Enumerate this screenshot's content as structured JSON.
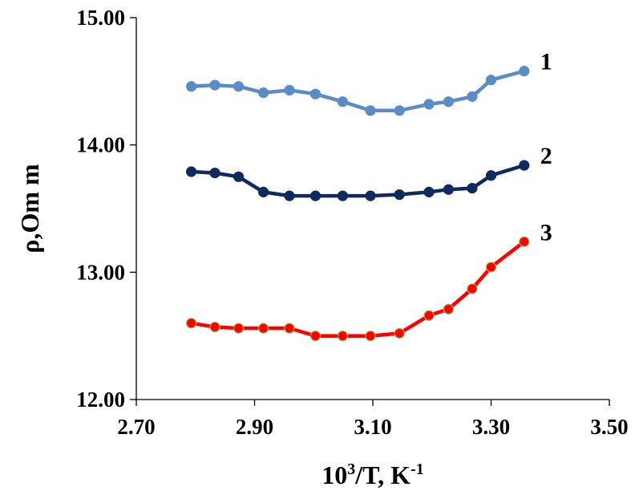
{
  "chart_data": {
    "type": "line",
    "xlabel": "10",
    "xlabel_sup1": "3",
    "xlabel_mid": "/T, K",
    "xlabel_sup2": "-1",
    "ylabel": "ρ,Om m",
    "xlim": [
      2.7,
      3.5
    ],
    "ylim": [
      12.0,
      15.0
    ],
    "xticks": [
      "2.70",
      "2.90",
      "3.10",
      "3.30",
      "3.50"
    ],
    "yticks": [
      "12.00",
      "13.00",
      "14.00",
      "15.00"
    ],
    "grid": false,
    "legend": "none",
    "series": [
      {
        "name": "1",
        "color": "#5b8cc8",
        "marker_fill": "#5b8cc8",
        "marker_edge": "#5b8cc8",
        "x": [
          2.793,
          2.833,
          2.873,
          2.915,
          2.959,
          3.003,
          3.049,
          3.096,
          3.145,
          3.195,
          3.228,
          3.268,
          3.3,
          3.356
        ],
        "y": [
          14.46,
          14.47,
          14.46,
          14.41,
          14.43,
          14.4,
          14.34,
          14.27,
          14.27,
          14.32,
          14.34,
          14.38,
          14.51,
          14.58
        ]
      },
      {
        "name": "2",
        "color": "#0e2a5e",
        "marker_fill": "#0e2a5e",
        "marker_edge": "#0e2a5e",
        "x": [
          2.793,
          2.833,
          2.873,
          2.915,
          2.959,
          3.003,
          3.049,
          3.096,
          3.145,
          3.195,
          3.228,
          3.268,
          3.3,
          3.356
        ],
        "y": [
          13.79,
          13.78,
          13.75,
          13.63,
          13.6,
          13.6,
          13.6,
          13.6,
          13.61,
          13.63,
          13.65,
          13.66,
          13.76,
          13.84
        ]
      },
      {
        "name": "3",
        "color": "#ff0000",
        "marker_fill": "#ff0000",
        "marker_edge": "#9ab24a",
        "x": [
          2.793,
          2.833,
          2.873,
          2.915,
          2.959,
          3.003,
          3.049,
          3.096,
          3.145,
          3.195,
          3.228,
          3.268,
          3.3,
          3.356
        ],
        "y": [
          12.6,
          12.57,
          12.56,
          12.56,
          12.56,
          12.5,
          12.5,
          12.5,
          12.52,
          12.66,
          12.71,
          12.87,
          13.04,
          13.24
        ]
      }
    ]
  }
}
